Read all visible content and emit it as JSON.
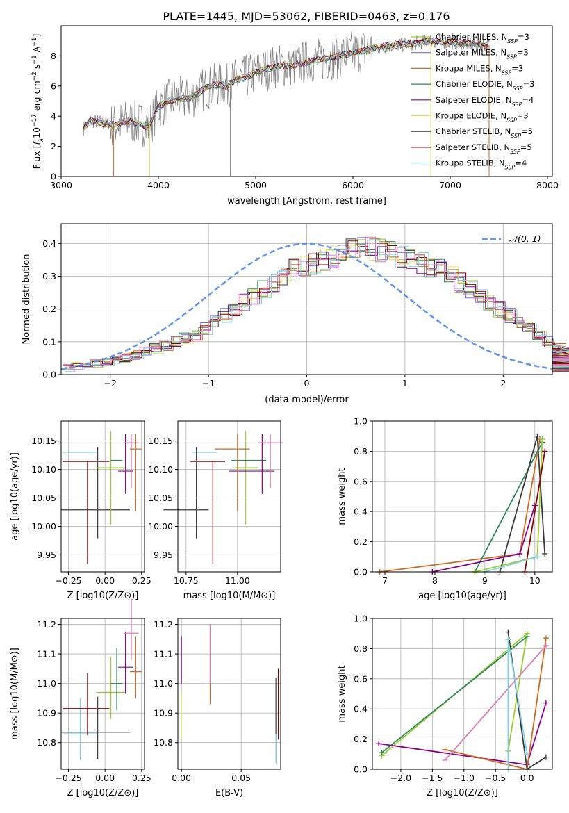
{
  "figure_title": "PLATE=1445, MJD=53062, FIBERID=0463, z=0.176",
  "colors": {
    "chabrier_miles": "#9acd32",
    "salpeter_miles": "#7b68ee",
    "kroupa_miles": "#d2691e",
    "chabrier_elodie": "#2e8b57",
    "salpeter_elodie": "#8b008b",
    "kroupa_elodie": "#e0e060",
    "chabrier_stelib": "#3a3a3a",
    "salpeter_stelib": "#8b0000",
    "kroupa_stelib": "#7fd4e0",
    "data": "#808080",
    "gaussian": "#6495ed",
    "pink": "#e07ab8"
  },
  "chart_data": [
    {
      "type": "line",
      "panel": "spectrum",
      "title": "PLATE=1445, MJD=53062, FIBERID=0463, z=0.176",
      "xlabel": "wavelength [Angstrom, rest frame]",
      "ylabel_parts": [
        "Flux [",
        "f",
        "λ",
        "10",
        "−17",
        " erg cm",
        "−2",
        " s",
        "−1",
        " A",
        "−1",
        "]"
      ],
      "xlim": [
        3000,
        8050
      ],
      "ylim": [
        0,
        10
      ],
      "xticks": [
        3000,
        4000,
        5000,
        6000,
        7000,
        8000
      ],
      "yticks": [
        0,
        2,
        4,
        6,
        8
      ],
      "x": [
        3230,
        3300,
        3400,
        3500,
        3600,
        3700,
        3800,
        3900,
        4000,
        4100,
        4200,
        4300,
        4400,
        4500,
        4600,
        4700,
        4800,
        4900,
        5000,
        5200,
        5400,
        5600,
        5800,
        6000,
        6200,
        6400,
        6600,
        6800,
        7000,
        7200,
        7400
      ],
      "series": [
        {
          "name": "Chabrier MILES, N_SSP=3",
          "label_main": "Chabrier MILES, N",
          "label_sub": "SSP",
          "label_tail": "=3",
          "values": [
            3.2,
            3.7,
            3.6,
            3.4,
            3.5,
            3.7,
            3.5,
            3.3,
            4.6,
            5.0,
            5.2,
            5.1,
            5.5,
            5.9,
            6.1,
            6.0,
            6.4,
            6.6,
            6.9,
            7.3,
            7.4,
            7.7,
            7.9,
            8.2,
            8.5,
            8.7,
            8.8,
            9.0,
            8.9,
            8.8,
            8.7
          ]
        },
        {
          "name": "Salpeter MILES, N_SSP=3",
          "label_main": "Salpeter MILES, N",
          "label_sub": "SSP",
          "label_tail": "=3",
          "values": [
            3.2,
            3.7,
            3.6,
            3.4,
            3.5,
            3.7,
            3.5,
            3.3,
            4.6,
            5.0,
            5.2,
            5.1,
            5.5,
            5.9,
            6.1,
            6.0,
            6.4,
            6.6,
            6.9,
            7.3,
            7.4,
            7.7,
            7.9,
            8.2,
            8.5,
            8.7,
            8.8,
            9.0,
            8.9,
            8.8,
            8.7
          ]
        },
        {
          "name": "Kroupa MILES, N_SSP=3",
          "label_main": "Kroupa MILES, N",
          "label_sub": "SSP",
          "label_tail": "=3",
          "values": [
            3.2,
            3.7,
            3.6,
            3.4,
            3.5,
            3.7,
            3.5,
            3.3,
            4.6,
            5.0,
            5.2,
            5.1,
            5.5,
            5.9,
            6.1,
            6.0,
            6.4,
            6.6,
            6.9,
            7.3,
            7.4,
            7.7,
            7.9,
            8.2,
            8.5,
            8.7,
            8.8,
            9.0,
            8.9,
            8.8,
            8.7
          ]
        },
        {
          "name": "Chabrier ELODIE, N_SSP=3",
          "label_main": "Chabrier ELODIE, N",
          "label_sub": "SSP",
          "label_tail": "=3",
          "values": [
            3.2,
            3.7,
            3.6,
            3.4,
            3.5,
            3.7,
            3.5,
            3.3,
            4.6,
            5.0,
            5.2,
            5.1,
            5.5,
            5.9,
            6.1,
            6.0,
            6.4,
            6.6,
            6.9,
            7.3,
            7.4,
            7.7,
            7.9,
            8.2,
            8.5,
            8.7,
            8.8,
            9.0,
            8.9,
            8.8,
            8.7
          ]
        },
        {
          "name": "Salpeter ELODIE, N_SSP=4",
          "label_main": "Salpeter ELODIE, N",
          "label_sub": "SSP",
          "label_tail": "=4",
          "values": [
            3.2,
            3.7,
            3.6,
            3.4,
            3.5,
            3.7,
            3.5,
            3.3,
            4.6,
            5.0,
            5.2,
            5.1,
            5.5,
            5.9,
            6.1,
            6.0,
            6.4,
            6.6,
            6.9,
            7.3,
            7.4,
            7.7,
            7.9,
            8.2,
            8.5,
            8.7,
            8.8,
            9.0,
            8.9,
            8.8,
            8.7
          ]
        },
        {
          "name": "Kroupa ELODIE, N_SSP=3",
          "label_main": "Kroupa ELODIE, N",
          "label_sub": "SSP",
          "label_tail": "=3",
          "values": [
            3.2,
            3.7,
            3.6,
            3.4,
            3.5,
            3.7,
            3.5,
            3.3,
            4.6,
            5.0,
            5.2,
            5.1,
            5.5,
            5.9,
            6.1,
            6.0,
            6.4,
            6.6,
            6.9,
            7.3,
            7.4,
            7.7,
            7.9,
            8.2,
            8.5,
            8.7,
            8.8,
            9.0,
            8.9,
            8.8,
            8.7
          ]
        },
        {
          "name": "Chabrier STELIB, N_SSP=5",
          "label_main": "Chabrier STELIB, N",
          "label_sub": "SSP",
          "label_tail": "=5",
          "values": [
            3.2,
            3.7,
            3.6,
            3.4,
            3.5,
            3.7,
            3.5,
            3.3,
            4.6,
            5.0,
            5.2,
            5.1,
            5.5,
            5.9,
            6.1,
            6.0,
            6.4,
            6.6,
            6.9,
            7.3,
            7.4,
            7.7,
            7.9,
            8.2,
            8.5,
            8.7,
            8.8,
            9.0,
            8.9,
            8.8,
            8.7
          ]
        },
        {
          "name": "Salpeter STELIB, N_SSP=5",
          "label_main": "Salpeter STELIB, N",
          "label_sub": "SSP",
          "label_tail": "=5",
          "values": [
            3.2,
            3.7,
            3.6,
            3.4,
            3.5,
            3.7,
            3.5,
            3.3,
            4.6,
            5.0,
            5.2,
            5.1,
            5.5,
            5.9,
            6.1,
            6.0,
            6.4,
            6.6,
            6.9,
            7.3,
            7.4,
            7.7,
            7.9,
            8.2,
            8.5,
            8.7,
            8.8,
            9.0,
            8.9,
            8.8,
            8.7
          ]
        },
        {
          "name": "Kroupa STELIB, N_SSP=4",
          "label_main": "Kroupa STELIB, N",
          "label_sub": "SSP",
          "label_tail": "=4",
          "values": [
            3.2,
            3.7,
            3.6,
            3.4,
            3.5,
            3.7,
            3.5,
            3.3,
            4.6,
            5.0,
            5.2,
            5.1,
            5.5,
            5.9,
            6.1,
            6.0,
            6.4,
            6.6,
            6.9,
            7.3,
            7.4,
            7.7,
            7.9,
            8.2,
            8.5,
            8.7,
            8.8,
            9.0,
            8.9,
            8.8,
            8.7
          ]
        }
      ],
      "legend": "top-right"
    },
    {
      "type": "line",
      "panel": "residuals",
      "xlabel": "(data-model)/error",
      "ylabel": "Normed distribution",
      "xlim": [
        -2.5,
        2.5
      ],
      "ylim": [
        0,
        0.46
      ],
      "xticks": [
        -2,
        -1,
        0,
        1,
        2
      ],
      "yticks": [
        0.0,
        0.1,
        0.2,
        0.3,
        0.4
      ],
      "grid": true,
      "gaussian_label": "𝒩(0, 1)",
      "gaussian": {
        "mean": 0,
        "sigma": 1
      },
      "bin_edges_start": -2.5,
      "bin_width": 0.1,
      "histogram_envelope": [
        0.02,
        0.025,
        0.03,
        0.035,
        0.04,
        0.045,
        0.05,
        0.06,
        0.07,
        0.08,
        0.09,
        0.1,
        0.11,
        0.12,
        0.14,
        0.16,
        0.18,
        0.2,
        0.22,
        0.24,
        0.26,
        0.28,
        0.3,
        0.32,
        0.33,
        0.34,
        0.35,
        0.36,
        0.37,
        0.38,
        0.385,
        0.385,
        0.38,
        0.37,
        0.36,
        0.35,
        0.34,
        0.33,
        0.32,
        0.3,
        0.28,
        0.26,
        0.24,
        0.22,
        0.2,
        0.18,
        0.16,
        0.14,
        0.12,
        0.1,
        0.09,
        0.08,
        0.07,
        0.06,
        0.05,
        0.045,
        0.04,
        0.035,
        0.03,
        0.025,
        0.02
      ]
    },
    {
      "type": "scatter",
      "panel": "age_vs_Z",
      "xlabel": "Z [log10(Z/Z⊙)]",
      "ylabel": "age  [log10(age/yr)]",
      "xlim": [
        -0.3,
        0.27
      ],
      "ylim": [
        9.92,
        10.185
      ],
      "xticks": [
        -0.25,
        0.0,
        0.25
      ],
      "yticks": [
        9.95,
        10.0,
        10.05,
        10.1,
        10.15
      ],
      "points": [
        {
          "x": -0.17,
          "y": 10.13,
          "xerr": [
            0.12,
            0.12
          ],
          "yerr": [
            0.0,
            0.0
          ],
          "color": "#7fd4e0"
        },
        {
          "x": -0.12,
          "y": 10.114,
          "xerr": [
            0.17,
            0.15
          ],
          "yerr": [
            0.18,
            0.0
          ],
          "color": "#8b0000"
        },
        {
          "x": -0.05,
          "y": 10.029,
          "xerr": [
            0.25,
            0.22
          ],
          "yerr": [
            0.05,
            0.11
          ],
          "color": "#3a3a3a"
        },
        {
          "x": 0.04,
          "y": 10.103,
          "xerr": [
            0.1,
            0.1
          ],
          "yerr": [
            0.1,
            0.065
          ],
          "color": "#9acd32"
        },
        {
          "x": 0.08,
          "y": 10.116,
          "xerr": [
            0.04,
            0.04
          ],
          "yerr": [
            0.0,
            0.0
          ],
          "color": "#2e8b57"
        },
        {
          "x": 0.14,
          "y": 10.097,
          "xerr": [
            0.05,
            0.05
          ],
          "yerr": [
            0.04,
            0.065
          ],
          "color": "#8b008b"
        },
        {
          "x": 0.18,
          "y": 10.147,
          "xerr": [
            0.05,
            0.05
          ],
          "yerr": [
            0.08,
            0.015
          ],
          "color": "#e07ab8"
        },
        {
          "x": 0.21,
          "y": 10.136,
          "xerr": [
            0.04,
            0.04
          ],
          "yerr": [
            0.11,
            0.027
          ],
          "color": "#d2691e"
        }
      ]
    },
    {
      "type": "scatter",
      "panel": "age_vs_mass",
      "xlabel": "mass [log10(M/M⊙)]",
      "xlim": [
        10.71,
        11.21
      ],
      "ylim": [
        9.92,
        10.185
      ],
      "xticks": [
        10.75,
        11.0
      ],
      "yticks": [
        9.95,
        10.0,
        10.05,
        10.1,
        10.15
      ]
    },
    {
      "type": "line",
      "panel": "massweight_vs_age",
      "xlabel": "age  [log10(age/yr)]",
      "ylabel": "mass weight",
      "xlim": [
        6.75,
        10.35
      ],
      "ylim": [
        0,
        1.0
      ],
      "xticks": [
        7,
        8,
        9,
        10
      ],
      "yticks": [
        0.0,
        0.2,
        0.4,
        0.6,
        0.8,
        1.0
      ],
      "grid": true,
      "series": [
        {
          "x": [
            6.9,
            9.7,
            10.1
          ],
          "values": [
            0.0,
            0.12,
            0.88
          ],
          "color": "#d2691e"
        },
        {
          "x": [
            8.8,
            10.15
          ],
          "values": [
            0.0,
            0.86
          ],
          "color": "#2e8b57"
        },
        {
          "x": [
            7.95,
            9.7,
            10.0
          ],
          "values": [
            0.0,
            0.12,
            0.44
          ],
          "color": "#8b008b"
        },
        {
          "x": [
            8.8,
            10.05,
            10.15
          ],
          "values": [
            0.0,
            0.1,
            0.88
          ],
          "color": "#9acd32"
        },
        {
          "x": [
            9.3,
            10.05,
            10.2
          ],
          "values": [
            0.0,
            0.9,
            0.12
          ],
          "color": "#3a3a3a"
        },
        {
          "x": [
            9.8,
            10.2
          ],
          "values": [
            0.0,
            0.8
          ],
          "color": "#8b0000"
        },
        {
          "x": [
            9.0,
            10.05
          ],
          "values": [
            0.0,
            0.1
          ],
          "color": "#7fd4e0"
        }
      ]
    },
    {
      "type": "scatter",
      "panel": "mass_vs_Z",
      "xlabel": "Z [log10(Z/Z⊙)]",
      "ylabel": "mass [log10(M/M⊙)]",
      "xlim": [
        -0.3,
        0.27
      ],
      "ylim": [
        10.71,
        11.22
      ],
      "xticks": [
        -0.25,
        0.0,
        0.25
      ],
      "yticks": [
        10.8,
        10.9,
        11.0,
        11.1,
        11.2
      ]
    },
    {
      "type": "scatter",
      "panel": "mass_vs_ebv",
      "xlabel": "E(B-V)",
      "xlim": [
        -0.003,
        0.083
      ],
      "ylim": [
        10.71,
        11.22
      ],
      "xticks": [
        0.0,
        0.05
      ],
      "yticks": [
        10.8,
        10.9,
        11.0,
        11.1,
        11.2
      ]
    },
    {
      "type": "line",
      "panel": "massweight_vs_Z",
      "xlabel": "Z [log10(Z/Z⊙)]",
      "ylabel": "mass weight",
      "xlim": [
        -2.45,
        0.4
      ],
      "ylim": [
        0,
        1.0
      ],
      "xticks": [
        -2.0,
        -1.5,
        -1.0,
        -0.5,
        0.0
      ],
      "yticks": [
        0.0,
        0.2,
        0.4,
        0.6,
        0.8,
        1.0
      ],
      "grid": true,
      "series": [
        {
          "x": [
            -2.3,
            0.0,
            -0.3
          ],
          "values": [
            0.09,
            0.9,
            0.12
          ],
          "color": "#9acd32"
        },
        {
          "x": [
            -2.3,
            0.0
          ],
          "values": [
            0.11,
            0.88
          ],
          "color": "#2e8b57"
        },
        {
          "x": [
            -2.35,
            0.0,
            0.3
          ],
          "values": [
            0.17,
            0.03,
            0.44
          ],
          "color": "#8b008b"
        },
        {
          "x": [
            -1.3,
            0.0,
            0.3
          ],
          "values": [
            0.13,
            0.0,
            0.87
          ],
          "color": "#d2691e"
        },
        {
          "x": [
            -1.3,
            0.3
          ],
          "values": [
            0.06,
            0.82
          ],
          "color": "#e07ab8"
        },
        {
          "x": [
            -0.3,
            0.0,
            0.3
          ],
          "values": [
            0.91,
            0.0,
            0.08
          ],
          "color": "#3a3a3a"
        },
        {
          "x": [
            -0.3,
            -0.3,
            0.0
          ],
          "values": [
            0.0,
            0.86,
            0.1
          ],
          "color": "#7fd4e0"
        }
      ]
    }
  ],
  "legend_gaussian": "𝒩(0, 1)"
}
